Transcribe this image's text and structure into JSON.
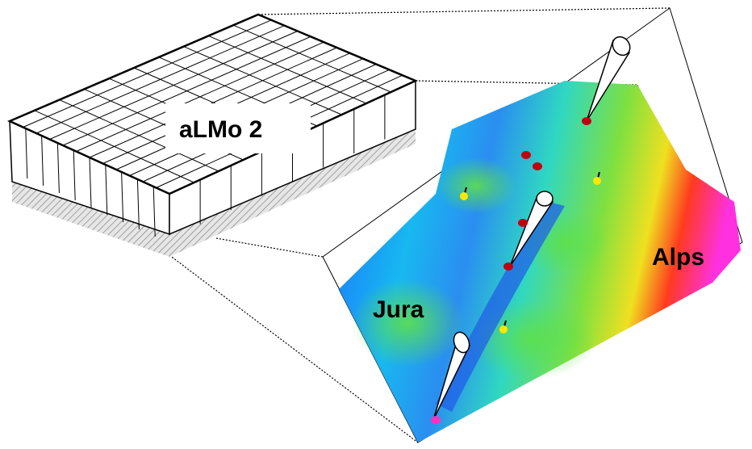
{
  "labels": {
    "model": "aLMo 2",
    "left_region": "Jura",
    "right_region": "Alps"
  }
}
